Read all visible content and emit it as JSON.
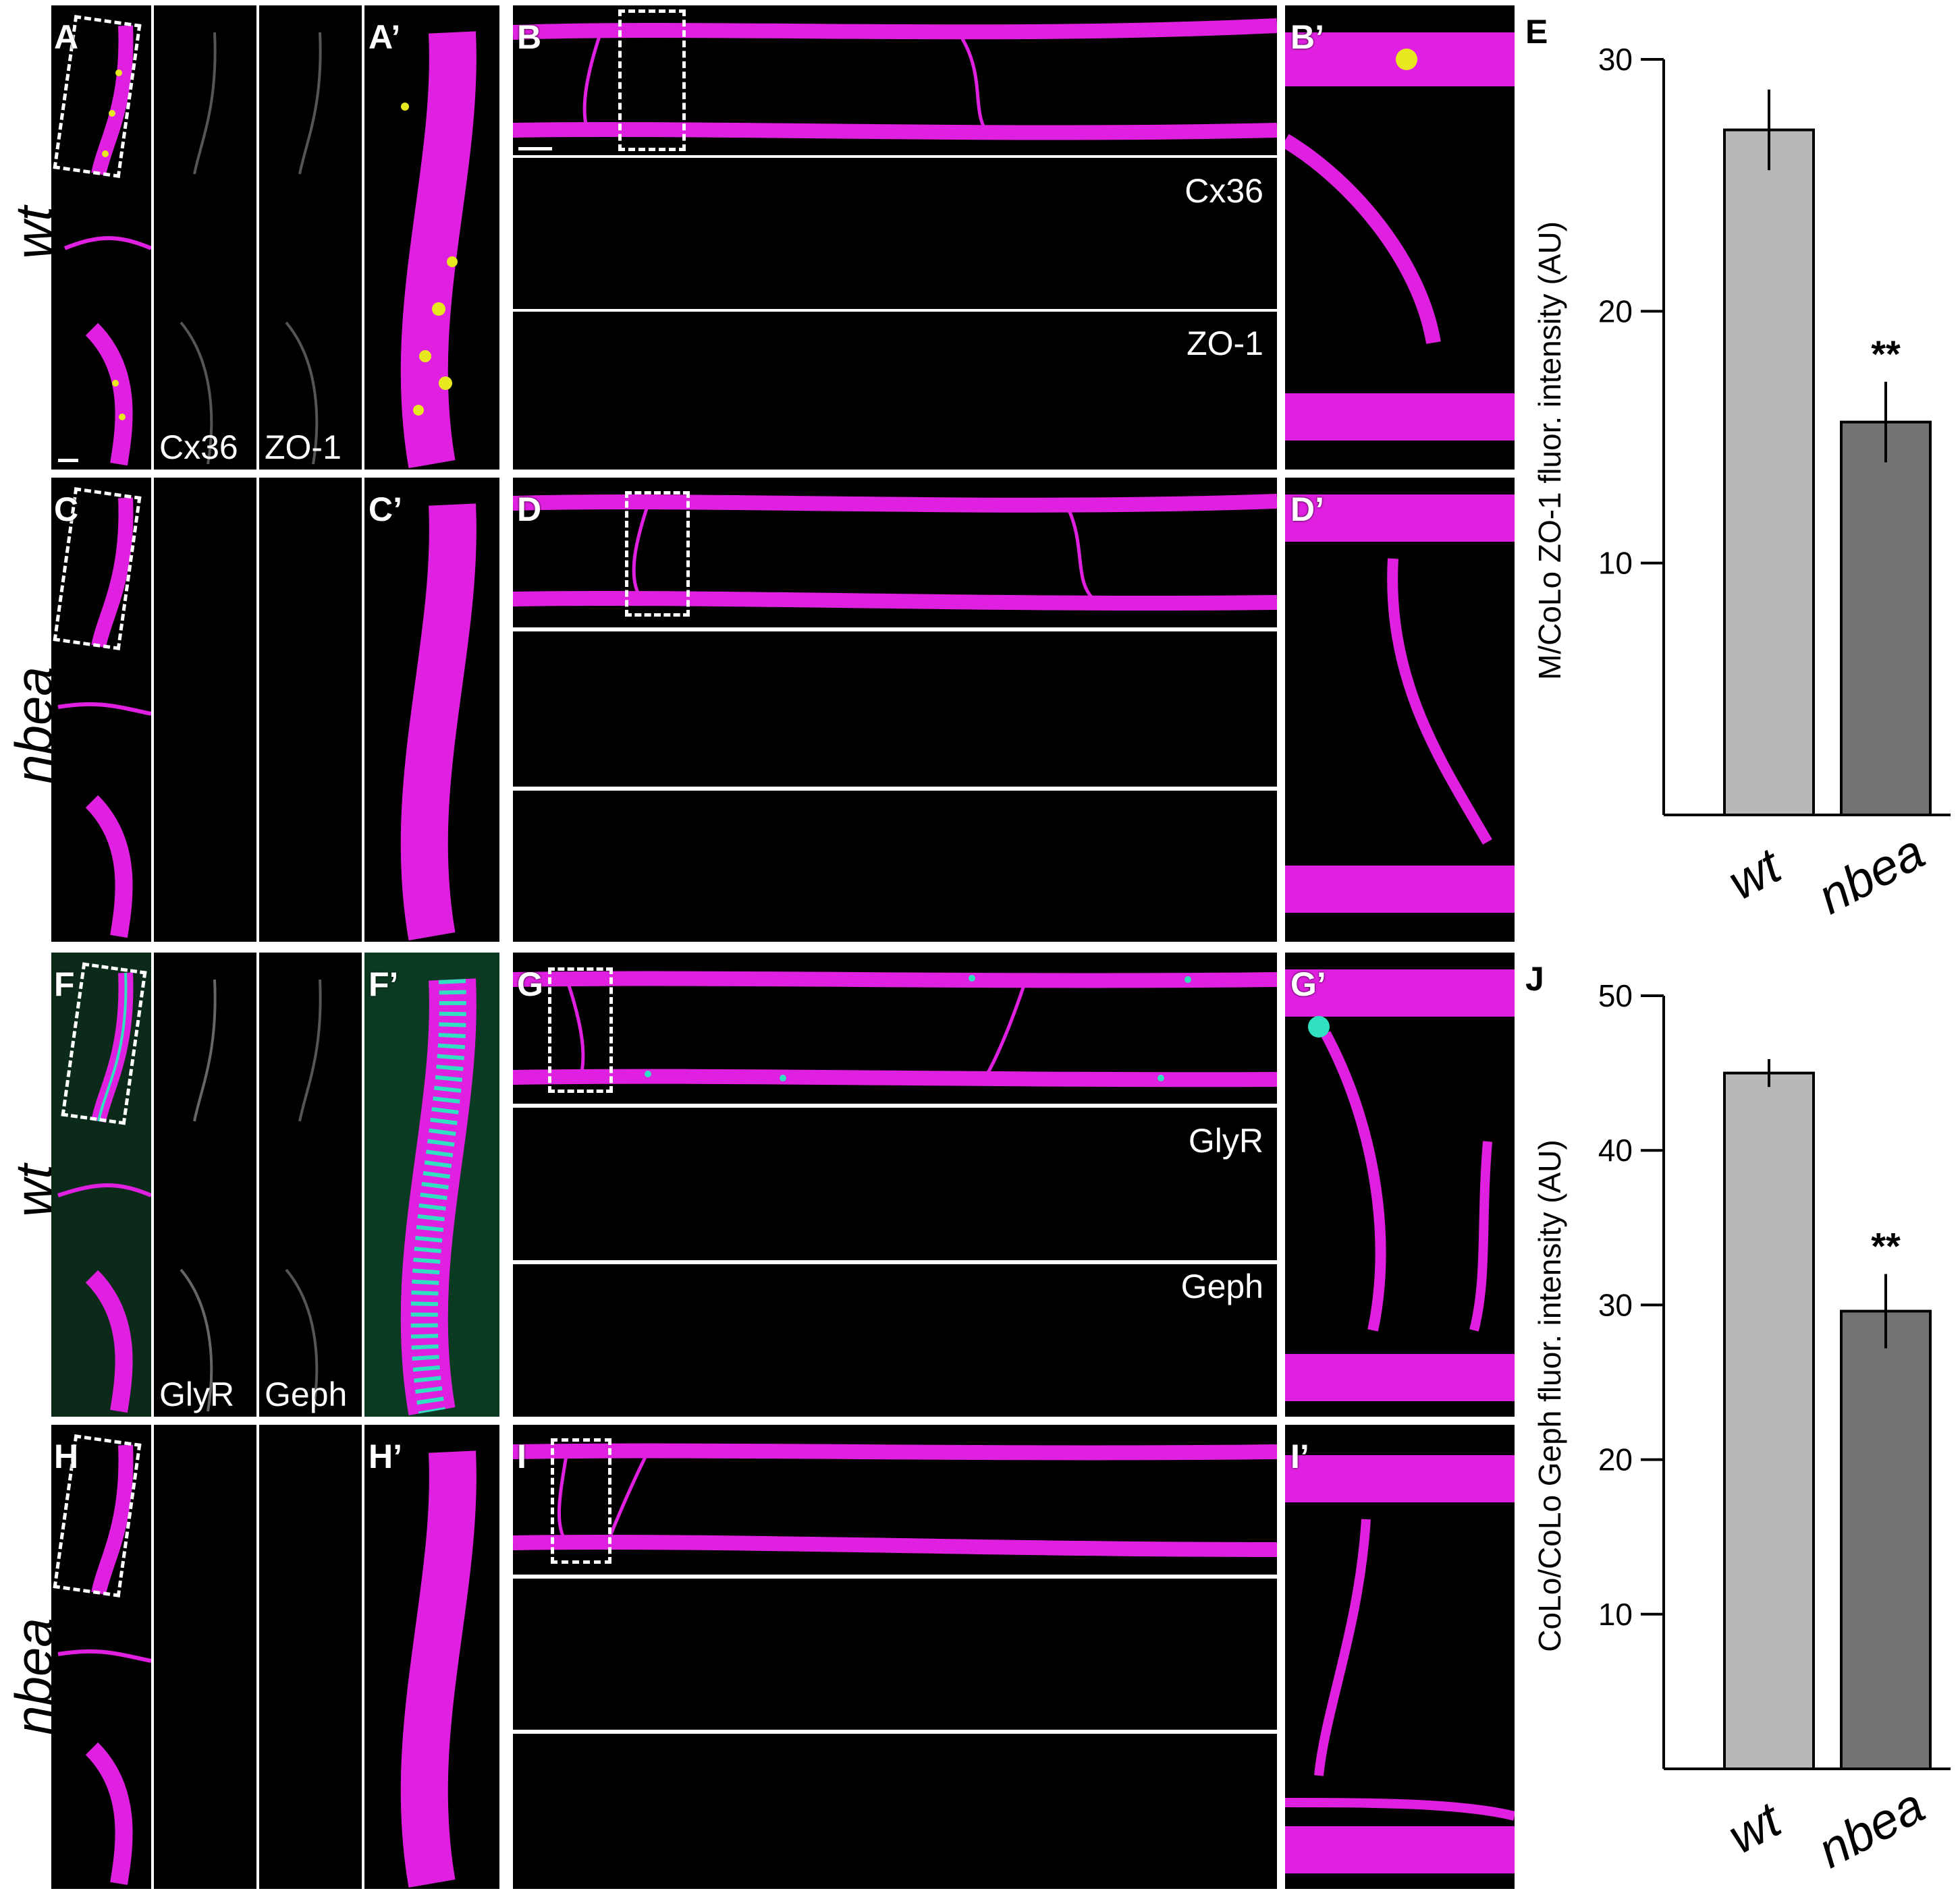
{
  "row_labels": {
    "r1": "wt",
    "r2": "nbea",
    "r3": "wt",
    "r4": "nbea"
  },
  "panel_labels": {
    "A": "A",
    "A2": "A’",
    "B": "B",
    "B2": "B’",
    "C": "C",
    "C2": "C’",
    "D": "D",
    "D2": "D’",
    "E": "E",
    "F": "F",
    "F2": "F’",
    "G": "G",
    "G2": "G’",
    "H": "H",
    "H2": "H’",
    "I": "I",
    "I2": "I’",
    "J": "J"
  },
  "channel_labels": {
    "cx36": "Cx36",
    "zo1": "ZO-1",
    "glyr": "GlyR",
    "geph": "Geph"
  },
  "colors": {
    "magenta": "#e020e0",
    "yellow": "#e8e820",
    "green": "#20c020",
    "cyan": "#30e0c0",
    "bar_wt": "#b8b8b8",
    "bar_nbea": "#737373"
  },
  "chart_data": [
    {
      "type": "bar",
      "panel": "E",
      "categories": [
        "wt",
        "nbea"
      ],
      "values": [
        27.2,
        15.6
      ],
      "errors": [
        1.6,
        1.6
      ],
      "significance": [
        "",
        "**"
      ],
      "ylabel": "M/CoLo ZO-1 fluor. intensity (AU)",
      "yticks": [
        10,
        20,
        30
      ],
      "ylim": [
        0,
        30
      ]
    },
    {
      "type": "bar",
      "panel": "J",
      "categories": [
        "wt",
        "nbea"
      ],
      "values": [
        45.0,
        29.6
      ],
      "errors": [
        0.9,
        2.4
      ],
      "significance": [
        "",
        "**"
      ],
      "ylabel": "CoLo/CoLo Geph fluor. intensity (AU)",
      "yticks": [
        10,
        20,
        30,
        40,
        50
      ],
      "ylim": [
        0,
        50
      ]
    }
  ]
}
